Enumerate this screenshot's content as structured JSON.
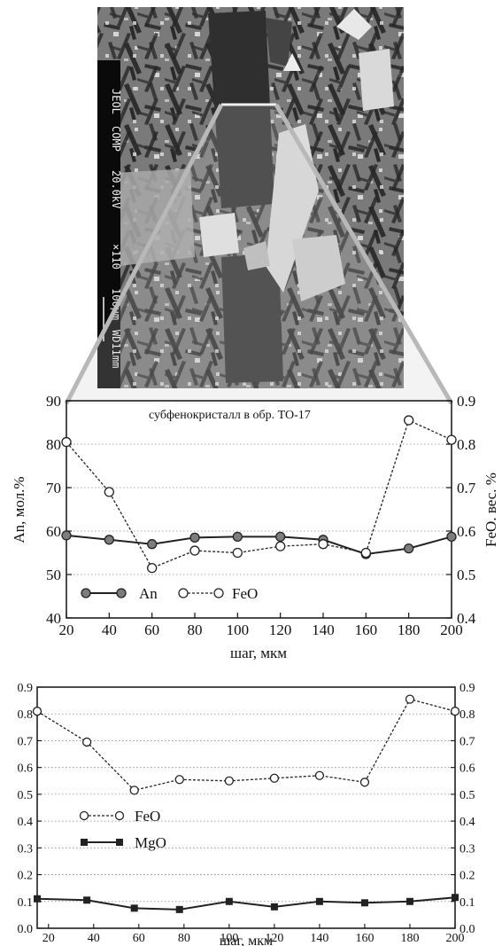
{
  "micrograph": {
    "label_instrument": "JEOL",
    "label_mode": "COMP",
    "label_voltage": "20.0kV",
    "label_magnification": "×110",
    "label_scale": "100μm",
    "label_wd": "WD11mm"
  },
  "chart_data": [
    {
      "type": "line",
      "annotation": "субфенокристалл в обр. ТО-17",
      "xlabel": "шаг, мкм",
      "ylabel_left": "An, мол.%",
      "ylabel_right": "FeO. вес. %",
      "xlim": [
        20,
        200
      ],
      "ylim_left": [
        40,
        90
      ],
      "ylim_right": [
        0.4,
        0.9
      ],
      "x_ticks": [
        "20",
        "40",
        "60",
        "80",
        "100",
        "120",
        "140",
        "160",
        "180",
        "200"
      ],
      "y_left_ticks": [
        "40",
        "50",
        "60",
        "70",
        "80",
        "90"
      ],
      "y_right_ticks": [
        "0.4",
        "0.5",
        "0.6",
        "0.7",
        "0.8",
        "0.9"
      ],
      "grid": "horizontal-dotted",
      "legend": "bottom-left",
      "series": [
        {
          "name": "An",
          "axis": "left",
          "style": "solid",
          "marker": "filled-gray-circle",
          "x": [
            20,
            40,
            60,
            80,
            100,
            120,
            140,
            160,
            180,
            200
          ],
          "values": [
            59,
            58,
            57,
            58.5,
            58.7,
            58.7,
            58,
            54.7,
            56,
            58.7
          ]
        },
        {
          "name": "FeO",
          "axis": "right",
          "style": "dashed",
          "marker": "open-circle",
          "x": [
            20,
            40,
            60,
            80,
            100,
            120,
            140,
            160,
            180,
            200
          ],
          "values": [
            0.805,
            0.69,
            0.515,
            0.555,
            0.55,
            0.565,
            0.57,
            0.55,
            0.855,
            0.81
          ]
        }
      ]
    },
    {
      "type": "line",
      "xlabel": "шаг, мкм",
      "xlim": [
        15,
        200
      ],
      "ylim": [
        0,
        0.9
      ],
      "x_ticks": [
        "20",
        "40",
        "60",
        "80",
        "100",
        "120",
        "140",
        "160",
        "180",
        "200"
      ],
      "y_ticks": [
        "0.0",
        "0.1",
        "0.2",
        "0.3",
        "0.4",
        "0.5",
        "0.6",
        "0.7",
        "0.8",
        "0.9"
      ],
      "grid": "horizontal-dotted",
      "legend": "center-left",
      "series": [
        {
          "name": "FeO",
          "style": "dashed",
          "marker": "open-circle",
          "x": [
            15,
            37,
            58,
            78,
            100,
            120,
            140,
            160,
            180,
            200
          ],
          "values": [
            0.81,
            0.695,
            0.515,
            0.555,
            0.55,
            0.56,
            0.57,
            0.545,
            0.855,
            0.81
          ]
        },
        {
          "name": "MgO",
          "style": "solid",
          "marker": "filled-square",
          "x": [
            15,
            37,
            58,
            78,
            100,
            120,
            140,
            160,
            180,
            200
          ],
          "values": [
            0.11,
            0.105,
            0.075,
            0.07,
            0.1,
            0.08,
            0.1,
            0.095,
            0.1,
            0.115
          ]
        }
      ]
    }
  ]
}
